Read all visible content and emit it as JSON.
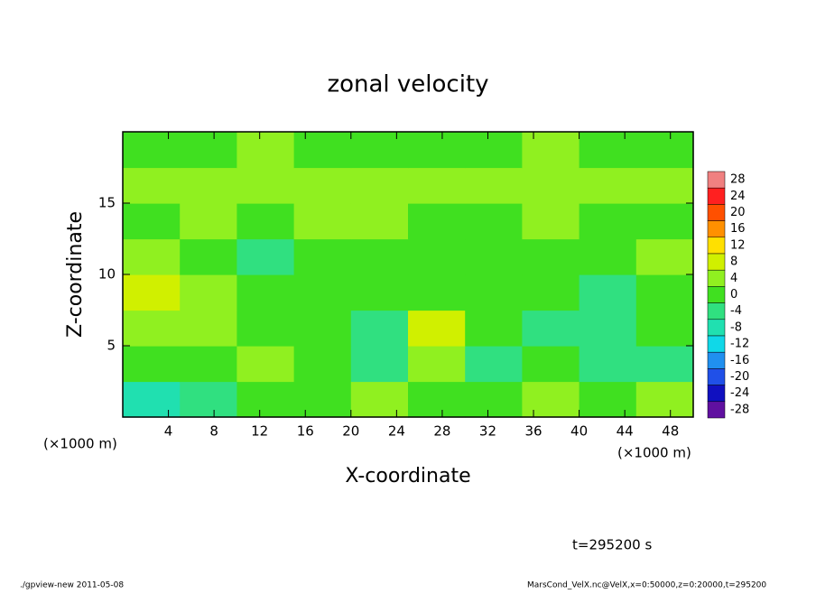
{
  "chart_data": {
    "type": "heatmap",
    "title": "zonal velocity",
    "xlabel": "X-coordinate",
    "ylabel": "Z-coordinate",
    "x_unit": "(×1000 m)",
    "y_unit": "(×1000 m)",
    "xlim": [
      0,
      50
    ],
    "ylim": [
      0,
      20
    ],
    "xticks": [
      4,
      8,
      12,
      16,
      20,
      24,
      28,
      32,
      36,
      40,
      44,
      48
    ],
    "yticks": [
      5,
      10,
      15
    ],
    "values": [
      [
        -10,
        -6,
        -2,
        0,
        2,
        -2,
        0,
        2,
        0,
        2
      ],
      [
        -2,
        0,
        2,
        -2,
        -6,
        4,
        -6,
        0,
        -6,
        -4
      ],
      [
        4,
        2,
        -2,
        -2,
        -4,
        6,
        -2,
        -4,
        -6,
        -2
      ],
      [
        6,
        4,
        0,
        -2,
        0,
        0,
        -2,
        -2,
        -4,
        -2
      ],
      [
        2,
        -2,
        -4,
        -2,
        -2,
        0,
        -2,
        -2,
        0,
        2
      ],
      [
        0,
        2,
        0,
        2,
        2,
        0,
        0,
        2,
        0,
        0
      ],
      [
        2,
        2,
        2,
        2,
        2,
        4,
        2,
        2,
        2,
        2
      ],
      [
        0,
        0,
        2,
        0,
        0,
        0,
        0,
        2,
        0,
        0
      ]
    ],
    "colorbar": {
      "levels": [
        28,
        24,
        20,
        16,
        12,
        8,
        4,
        0,
        -4,
        -8,
        -12,
        -16,
        -20,
        -24,
        -28
      ],
      "colors": [
        "#f08080",
        "#ff2020",
        "#ff5000",
        "#ff9000",
        "#ffe000",
        "#d0f000",
        "#90f020",
        "#40e020",
        "#30e080",
        "#20e0b0",
        "#10d8e8",
        "#2090f0",
        "#2050e8",
        "#1010c0",
        "#6010a0"
      ]
    },
    "annotation": "t=295200 s",
    "footer_left": "./gpview-new  2011-05-08",
    "footer_right": "MarsCond_VelX.nc@VelX,x=0:50000,z=0:20000,t=295200"
  }
}
